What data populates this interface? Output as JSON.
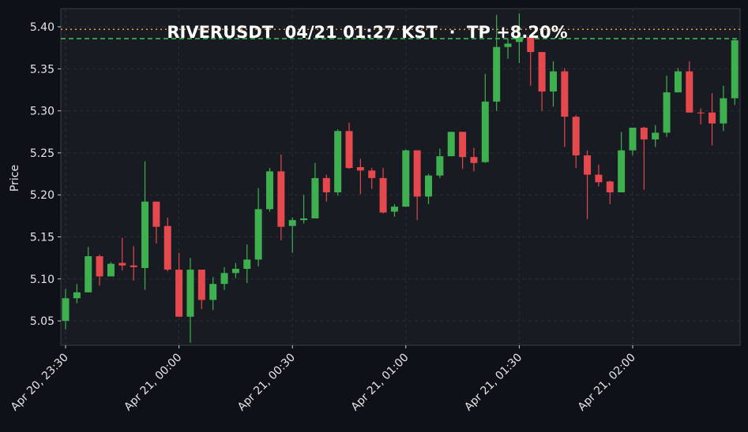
{
  "colors": {
    "up": "#3fb04f",
    "down": "#e5484d",
    "tp_line": "#f0a030",
    "entry_line": "#3fc85a",
    "grid": "#2a2f38",
    "text": "#e6e6e6"
  },
  "chart_data": {
    "type": "candlestick",
    "title": "RIVERUSDT  04/21 01:27 KST  ·  TP +8.20%",
    "ylabel": "Price",
    "xlabel": "",
    "ylim": [
      5.021,
      5.4216
    ],
    "yticks": [
      "5.05",
      "5.10",
      "5.15",
      "5.20",
      "5.25",
      "5.30",
      "5.35",
      "5.40"
    ],
    "xticks": [
      {
        "index": 0,
        "label": "Apr 20, 23:30"
      },
      {
        "index": 10,
        "label": "Apr 21, 00:00"
      },
      {
        "index": 20,
        "label": "Apr 21, 00:30"
      },
      {
        "index": 30,
        "label": "Apr 21, 01:00"
      },
      {
        "index": 40,
        "label": "Apr 21, 01:30"
      },
      {
        "index": 50,
        "label": "Apr 21, 02:00"
      }
    ],
    "interval_minutes": 3,
    "grid": true,
    "hlines": [
      {
        "name": "tp",
        "value": 5.397,
        "style": "dotted"
      },
      {
        "name": "entry",
        "value": 5.386,
        "style": "dashed"
      }
    ],
    "ohlc": [
      [
        5.05,
        5.088,
        5.04,
        5.077
      ],
      [
        5.077,
        5.094,
        5.071,
        5.084
      ],
      [
        5.084,
        5.138,
        5.084,
        5.127
      ],
      [
        5.127,
        5.129,
        5.092,
        5.103
      ],
      [
        5.103,
        5.12,
        5.103,
        5.118
      ],
      [
        5.119,
        5.149,
        5.11,
        5.116
      ],
      [
        5.116,
        5.139,
        5.098,
        5.114
      ],
      [
        5.113,
        5.24,
        5.087,
        5.192
      ],
      [
        5.192,
        5.192,
        5.142,
        5.162
      ],
      [
        5.163,
        5.173,
        5.109,
        5.111
      ],
      [
        5.111,
        5.131,
        5.055,
        5.055
      ],
      [
        5.055,
        5.125,
        5.024,
        5.111
      ],
      [
        5.111,
        5.111,
        5.064,
        5.075
      ],
      [
        5.075,
        5.102,
        5.063,
        5.094
      ],
      [
        5.094,
        5.114,
        5.087,
        5.107
      ],
      [
        5.107,
        5.119,
        5.101,
        5.112
      ],
      [
        5.112,
        5.141,
        5.095,
        5.123
      ],
      [
        5.123,
        5.208,
        5.115,
        5.183
      ],
      [
        5.183,
        5.232,
        5.18,
        5.228
      ],
      [
        5.228,
        5.248,
        5.146,
        5.162
      ],
      [
        5.163,
        5.173,
        5.131,
        5.17
      ],
      [
        5.17,
        5.2,
        5.166,
        5.172
      ],
      [
        5.172,
        5.238,
        5.172,
        5.22
      ],
      [
        5.22,
        5.224,
        5.192,
        5.203
      ],
      [
        5.203,
        5.278,
        5.199,
        5.276
      ],
      [
        5.276,
        5.286,
        5.231,
        5.232
      ],
      [
        5.233,
        5.243,
        5.201,
        5.229
      ],
      [
        5.229,
        5.232,
        5.207,
        5.22
      ],
      [
        5.22,
        5.232,
        5.178,
        5.179
      ],
      [
        5.18,
        5.189,
        5.174,
        5.186
      ],
      [
        5.186,
        5.254,
        5.186,
        5.253
      ],
      [
        5.253,
        5.253,
        5.17,
        5.198
      ],
      [
        5.198,
        5.225,
        5.189,
        5.223
      ],
      [
        5.223,
        5.255,
        5.22,
        5.246
      ],
      [
        5.246,
        5.275,
        5.246,
        5.275
      ],
      [
        5.275,
        5.275,
        5.231,
        5.245
      ],
      [
        5.245,
        5.256,
        5.228,
        5.238
      ],
      [
        5.239,
        5.344,
        5.238,
        5.311
      ],
      [
        5.311,
        5.414,
        5.3,
        5.376
      ],
      [
        5.376,
        5.386,
        5.362,
        5.38
      ],
      [
        5.382,
        5.416,
        5.357,
        5.388
      ],
      [
        5.388,
        5.39,
        5.33,
        5.37
      ],
      [
        5.37,
        5.37,
        5.3,
        5.323
      ],
      [
        5.323,
        5.359,
        5.305,
        5.347
      ],
      [
        5.347,
        5.351,
        5.257,
        5.293
      ],
      [
        5.293,
        5.295,
        5.232,
        5.247
      ],
      [
        5.247,
        5.253,
        5.171,
        5.224
      ],
      [
        5.224,
        5.236,
        5.21,
        5.215
      ],
      [
        5.216,
        5.217,
        5.189,
        5.203
      ],
      [
        5.203,
        5.275,
        5.203,
        5.253
      ],
      [
        5.253,
        5.28,
        5.247,
        5.28
      ],
      [
        5.28,
        5.281,
        5.206,
        5.266
      ],
      [
        5.266,
        5.283,
        5.257,
        5.274
      ],
      [
        5.274,
        5.342,
        5.269,
        5.322
      ],
      [
        5.322,
        5.351,
        5.322,
        5.347
      ],
      [
        5.347,
        5.359,
        5.298,
        5.298
      ],
      [
        5.298,
        5.303,
        5.284,
        5.297
      ],
      [
        5.298,
        5.321,
        5.259,
        5.285
      ],
      [
        5.285,
        5.33,
        5.276,
        5.315
      ],
      [
        5.315,
        5.385,
        5.307,
        5.384
      ]
    ]
  }
}
